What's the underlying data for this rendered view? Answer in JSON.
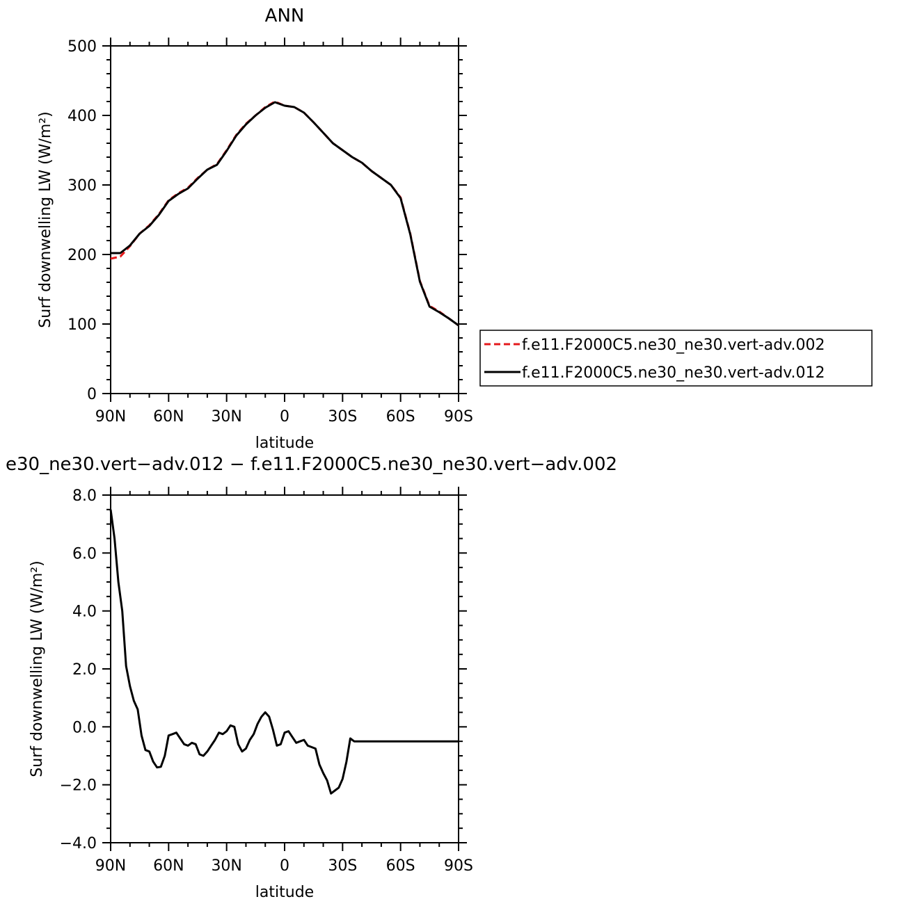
{
  "chart_data": [
    {
      "type": "line",
      "title": "ANN",
      "xlabel": "latitude",
      "ylabel": "Surf downwelling LW (W/m²)",
      "xlim": [
        -90,
        90
      ],
      "ylim": [
        0,
        500
      ],
      "x_ticks": [
        {
          "value": -90,
          "label": "90N"
        },
        {
          "value": -60,
          "label": "60N"
        },
        {
          "value": -30,
          "label": "30N"
        },
        {
          "value": 0,
          "label": "0"
        },
        {
          "value": 30,
          "label": "30S"
        },
        {
          "value": 60,
          "label": "60S"
        },
        {
          "value": 90,
          "label": "90S"
        }
      ],
      "y_ticks": [
        {
          "value": 0,
          "label": "0"
        },
        {
          "value": 100,
          "label": "100"
        },
        {
          "value": 200,
          "label": "200"
        },
        {
          "value": 300,
          "label": "300"
        },
        {
          "value": 400,
          "label": "400"
        },
        {
          "value": 500,
          "label": "500"
        }
      ],
      "legend": "right-bottom",
      "series": [
        {
          "name": "f.e11.F2000C5.ne30_ne30.vert-adv.002",
          "color": "#e41a1c",
          "dash": "dashed",
          "x": [
            -90,
            -85,
            -80,
            -75,
            -70,
            -65,
            -60,
            -55,
            -50,
            -45,
            -40,
            -35,
            -30,
            -25,
            -20,
            -15,
            -10,
            -5,
            0,
            5,
            10,
            15,
            20,
            25,
            30,
            35,
            40,
            45,
            50,
            55,
            60,
            65,
            70,
            75,
            80,
            85,
            90
          ],
          "y": [
            194,
            197,
            212,
            230,
            242,
            258,
            278,
            288,
            296,
            310,
            322,
            330,
            350,
            372,
            388,
            400,
            412,
            420,
            414,
            412,
            404,
            390,
            375,
            360,
            350,
            340,
            332,
            320,
            310,
            300,
            282,
            230,
            162,
            126,
            118,
            108,
            98
          ]
        },
        {
          "name": "f.e11.F2000C5.ne30_ne30.vert-adv.012",
          "color": "#000000",
          "dash": "solid",
          "x": [
            -90,
            -85,
            -80,
            -75,
            -70,
            -65,
            -60,
            -55,
            -50,
            -45,
            -40,
            -35,
            -30,
            -25,
            -20,
            -15,
            -10,
            -5,
            0,
            5,
            10,
            15,
            20,
            25,
            30,
            35,
            40,
            45,
            50,
            55,
            60,
            65,
            70,
            75,
            80,
            85,
            90
          ],
          "y": [
            202,
            202,
            213,
            230,
            241,
            257,
            277,
            287,
            295,
            309,
            322,
            329,
            349,
            371,
            387,
            400,
            411,
            419,
            414,
            412,
            404,
            390,
            375,
            360,
            350,
            340,
            332,
            320,
            310,
            300,
            281,
            229,
            161,
            125,
            117,
            108,
            98
          ]
        }
      ]
    },
    {
      "type": "line",
      "title": "e30_ne30.vert−adv.012 − f.e11.F2000C5.ne30_ne30.vert−adv.002",
      "xlabel": "latitude",
      "ylabel": "Surf downwelling LW (W/m²)",
      "xlim": [
        -90,
        90
      ],
      "ylim": [
        -4,
        8
      ],
      "x_ticks": [
        {
          "value": -90,
          "label": "90N"
        },
        {
          "value": -60,
          "label": "60N"
        },
        {
          "value": -30,
          "label": "30N"
        },
        {
          "value": 0,
          "label": "0"
        },
        {
          "value": 30,
          "label": "30S"
        },
        {
          "value": 60,
          "label": "60S"
        },
        {
          "value": 90,
          "label": "90S"
        }
      ],
      "y_ticks": [
        {
          "value": -4,
          "label": "−4.0"
        },
        {
          "value": -2,
          "label": "−2.0"
        },
        {
          "value": 0,
          "label": "0.0"
        },
        {
          "value": 2,
          "label": "2.0"
        },
        {
          "value": 4,
          "label": "4.0"
        },
        {
          "value": 6,
          "label": "6.0"
        },
        {
          "value": 8,
          "label": "8.0"
        }
      ],
      "series": [
        {
          "color": "#000000",
          "dash": "solid",
          "x": [
            -90,
            -88,
            -86,
            -84,
            -82,
            -80,
            -78,
            -76,
            -74,
            -72,
            -70,
            -68,
            -66,
            -64,
            -62,
            -60,
            -58,
            -56,
            -54,
            -52,
            -50,
            -48,
            -46,
            -44,
            -42,
            -40,
            -38,
            -36,
            -34,
            -32,
            -30,
            -28,
            -26,
            -24,
            -22,
            -20,
            -18,
            -16,
            -14,
            -12,
            -10,
            -8,
            -6,
            -4,
            -2,
            0,
            2,
            4,
            6,
            8,
            10,
            12,
            14,
            16,
            18,
            20,
            22,
            24,
            26,
            28,
            30,
            32,
            34,
            36,
            38,
            40,
            42,
            44,
            46,
            48,
            50,
            52,
            54,
            56,
            58,
            60,
            62,
            64,
            66,
            68,
            70,
            72,
            74,
            76,
            78,
            80,
            82,
            84,
            86,
            88,
            90
          ],
          "y": [
            7.5,
            6.5,
            5.0,
            4.0,
            2.1,
            1.4,
            0.9,
            0.6,
            -0.3,
            -0.8,
            -0.85,
            -1.2,
            -1.4,
            -1.38,
            -1.0,
            -0.3,
            -0.25,
            -0.2,
            -0.4,
            -0.6,
            -0.65,
            -0.55,
            -0.6,
            -0.95,
            -1.0,
            -0.85,
            -0.65,
            -0.45,
            -0.2,
            -0.25,
            -0.15,
            0.05,
            0.0,
            -0.6,
            -0.85,
            -0.75,
            -0.45,
            -0.25,
            0.1,
            0.35,
            0.5,
            0.35,
            -0.1,
            -0.65,
            -0.6,
            -0.2,
            -0.15,
            -0.35,
            -0.55,
            -0.5,
            -0.45,
            -0.65,
            -0.7,
            -0.75,
            -1.3,
            -1.6,
            -1.85,
            -2.3,
            -2.2,
            -2.1,
            -1.8,
            -1.2,
            -0.4,
            -0.5,
            -0.5,
            -0.5,
            -0.5,
            -0.5,
            -0.5,
            -0.5,
            -0.5,
            -0.5,
            -0.5,
            -0.5,
            -0.5,
            -0.5,
            -0.5,
            -0.5,
            -0.5,
            -0.5,
            -0.5,
            -0.5,
            -0.5,
            -0.5,
            -0.5,
            -0.5,
            -0.5,
            -0.5,
            -0.5,
            -0.5,
            -0.5
          ]
        }
      ]
    }
  ]
}
